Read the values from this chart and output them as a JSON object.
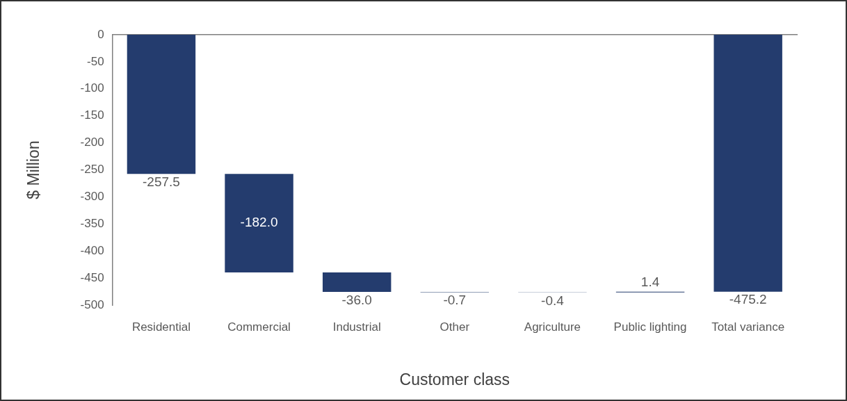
{
  "chart_data": {
    "type": "bar",
    "xlabel": "Customer class",
    "ylabel": "$ Million",
    "categories": [
      "Residential",
      "Commercial",
      "Industrial",
      "Other",
      "Agriculture",
      "Public lighting",
      "Total variance"
    ],
    "values": [
      -257.5,
      -182.0,
      -36.0,
      -0.7,
      -0.4,
      1.4,
      -475.2
    ],
    "base": [
      0,
      -257.5,
      -439.5,
      -475.5,
      -476.2,
      -476.6,
      0
    ],
    "value_labels": [
      "-257.5",
      "-182.0",
      "-36.0",
      "-0.7",
      "-0.4",
      "1.4",
      "-475.2"
    ],
    "color": "#243c6e",
    "ylim": [
      -500,
      0
    ],
    "yticks": [
      0,
      -50,
      -100,
      -150,
      -200,
      -250,
      -300,
      -350,
      -400,
      -450,
      -500
    ],
    "grid": false,
    "legend": false
  }
}
